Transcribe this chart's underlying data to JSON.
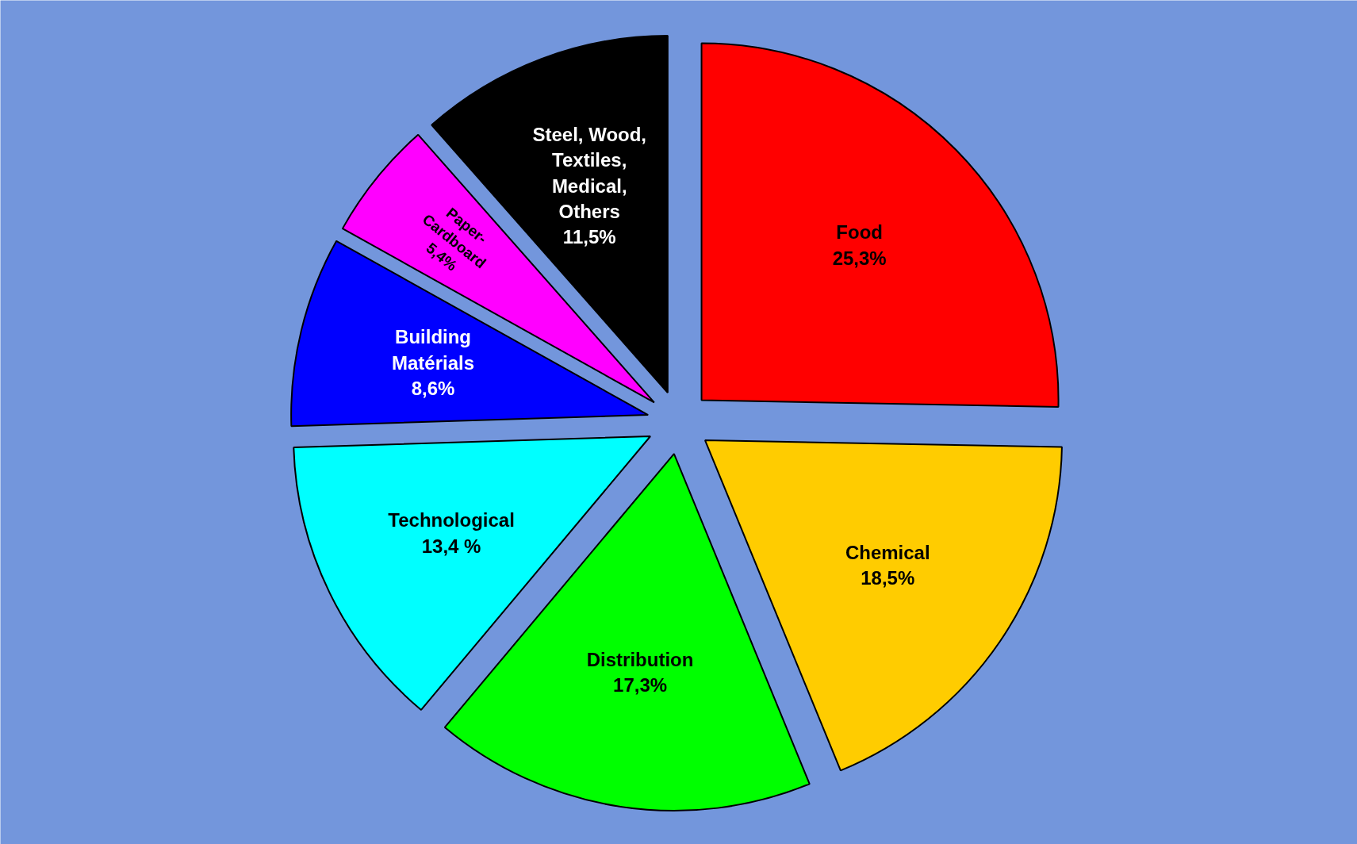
{
  "chart_data": {
    "type": "pie",
    "categories": [
      "Food",
      "Chemical",
      "Distribution",
      "Technological",
      "Building Matérials",
      "Paper-Cardboard",
      "Steel, Wood, Textiles, Medical, Others"
    ],
    "values": [
      25.3,
      18.5,
      17.3,
      13.4,
      8.6,
      5.4,
      11.5
    ],
    "value_labels": [
      "25,3%",
      "18,5%",
      "17,3%",
      "13,4 %",
      "8,6%",
      "5,4%",
      "11,5%"
    ],
    "colors": [
      "#ff0000",
      "#ffcc00",
      "#00ff00",
      "#00ffff",
      "#0000ff",
      "#ff00ff",
      "#000000"
    ],
    "data_labels": true
  }
}
